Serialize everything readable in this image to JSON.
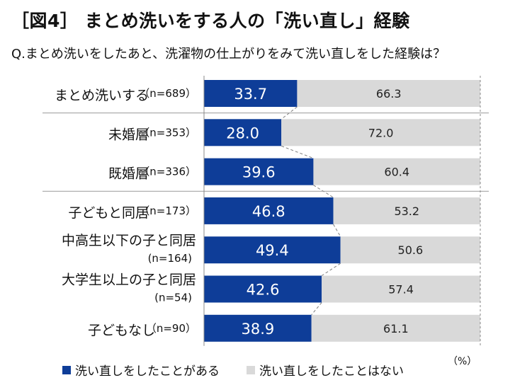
{
  "title": "［図4］ まとめ洗いをする人の「洗い直し」経験",
  "question": "Q.まとめ洗いをしたあと、洗濯物の仕上がりをみて洗い直しをした経験は？",
  "unit": "（%）",
  "colors": {
    "series1": "#0e3d98",
    "series2": "#d9d9d9",
    "separator": "#999999",
    "connector": "#7f7f7f"
  },
  "chart_data": {
    "type": "bar",
    "orientation": "horizontal",
    "stacked": true,
    "percent_scale": true,
    "categories": [
      {
        "label": "まとめ洗いする",
        "n": "（n=689）"
      },
      {
        "label": "未婚層",
        "n": "（n=353）"
      },
      {
        "label": "既婚層",
        "n": "（n=336）"
      },
      {
        "label": "子どもと同居",
        "n": "（n=173）"
      },
      {
        "label": "中高生以下の子と同居",
        "n": "(n=164)"
      },
      {
        "label": "大学生以上の子と同居",
        "n": "(n=54)"
      },
      {
        "label": "子どもなし",
        "n": "（n=90）"
      }
    ],
    "series": [
      {
        "name": "洗い直しをしたことがある",
        "values": [
          "33.7",
          "28.0",
          "39.6",
          "46.8",
          "49.4",
          "42.6",
          "38.9"
        ]
      },
      {
        "name": "洗い直しをしたことはない",
        "values": [
          "66.3",
          "72.0",
          "60.4",
          "53.2",
          "50.6",
          "57.4",
          "61.1"
        ]
      }
    ],
    "xlim": [
      0,
      100
    ],
    "group_separators_after": [
      0,
      2
    ],
    "legend_position": "bottom"
  }
}
